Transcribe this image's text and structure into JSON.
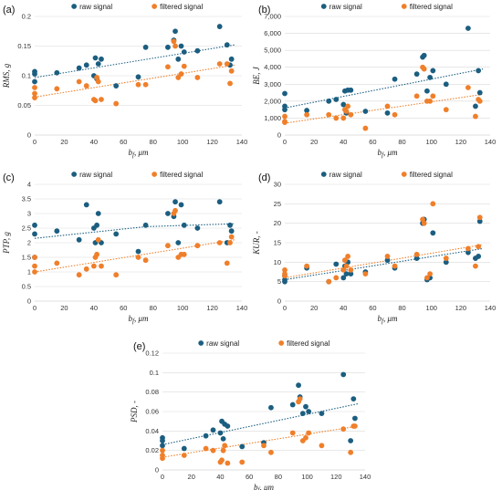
{
  "colors": {
    "raw": "#1b5e80",
    "filtered": "#f07f2a",
    "grid": "#d9d9d9",
    "axis": "#bfbfbf"
  },
  "chart_data": [
    {
      "type": "scatter",
      "label": "(a)",
      "xlabel": "b_f, μm",
      "ylabel": "RMS, g",
      "xlim": [
        0,
        140
      ],
      "ylim": [
        0,
        0.2
      ],
      "xticks": [
        "0",
        "20",
        "40",
        "60",
        "80",
        "100",
        "120",
        "140"
      ],
      "yticks": [
        "0",
        "0.05",
        "0.1",
        "0.15",
        "0.2"
      ],
      "ytick_values": [
        0,
        0.05,
        0.1,
        0.15,
        0.2
      ],
      "legend": [
        "raw signal",
        "filtered signal"
      ],
      "series": [
        {
          "name": "raw signal",
          "x": [
            0,
            0,
            0,
            15,
            30,
            35,
            40,
            41,
            42,
            43,
            45,
            55,
            70,
            75,
            90,
            94,
            95,
            97,
            99,
            101,
            110,
            125,
            130,
            132,
            133
          ],
          "y": [
            0.103,
            0.107,
            0.09,
            0.105,
            0.113,
            0.118,
            0.1,
            0.13,
            0.095,
            0.12,
            0.128,
            0.083,
            0.098,
            0.148,
            0.148,
            0.16,
            0.175,
            0.128,
            0.15,
            0.14,
            0.142,
            0.183,
            0.152,
            0.118,
            0.128
          ],
          "trend": [
            [
              0,
              0.097
            ],
            [
              135,
              0.152
            ]
          ]
        },
        {
          "name": "filtered signal",
          "x": [
            0,
            0,
            0,
            15,
            30,
            35,
            40,
            41,
            42,
            43,
            45,
            55,
            70,
            75,
            90,
            94,
            95,
            97,
            99,
            101,
            110,
            125,
            130,
            132,
            133
          ],
          "y": [
            0.07,
            0.063,
            0.08,
            0.078,
            0.09,
            0.083,
            0.06,
            0.058,
            0.097,
            0.09,
            0.06,
            0.053,
            0.085,
            0.085,
            0.115,
            0.158,
            0.15,
            0.097,
            0.103,
            0.116,
            0.097,
            0.12,
            0.12,
            0.087,
            0.108
          ],
          "trend": [
            [
              0,
              0.064
            ],
            [
              135,
              0.118
            ]
          ]
        }
      ]
    },
    {
      "type": "scatter",
      "label": "(b)",
      "xlabel": "b_f, μm",
      "ylabel": "BE, J",
      "xlim": [
        0,
        140
      ],
      "ylim": [
        0,
        7000
      ],
      "xticks": [
        "0",
        "20",
        "40",
        "60",
        "80",
        "100",
        "120",
        "140"
      ],
      "yticks": [
        "0",
        "1,000",
        "2,000",
        "3,000",
        "4,000",
        "5,000",
        "6,000",
        "7,000"
      ],
      "ytick_values": [
        0,
        1000,
        2000,
        3000,
        4000,
        5000,
        6000,
        7000
      ],
      "legend": [
        "raw signal",
        "filtered signal"
      ],
      "series": [
        {
          "name": "raw signal",
          "x": [
            0,
            0,
            0,
            15,
            30,
            35,
            40,
            41,
            42,
            43,
            45,
            55,
            70,
            75,
            90,
            94,
            95,
            97,
            99,
            101,
            110,
            125,
            130,
            132,
            133
          ],
          "y": [
            2450,
            1700,
            1500,
            1450,
            2000,
            2100,
            1800,
            2600,
            1300,
            2650,
            2650,
            1400,
            1300,
            3300,
            3600,
            4600,
            4700,
            2600,
            3400,
            3800,
            3000,
            6300,
            1700,
            3800,
            2500
          ],
          "trend": [
            [
              0,
              1600
            ],
            [
              135,
              3900
            ]
          ]
        },
        {
          "name": "filtered signal",
          "x": [
            0,
            0,
            0,
            15,
            30,
            35,
            40,
            41,
            42,
            43,
            45,
            55,
            70,
            75,
            90,
            94,
            95,
            97,
            99,
            101,
            110,
            125,
            130,
            132,
            133
          ],
          "y": [
            750,
            800,
            1100,
            1200,
            1200,
            1000,
            1000,
            1500,
            1400,
            1700,
            1200,
            400,
            1700,
            1200,
            2300,
            4000,
            3900,
            2000,
            2000,
            2300,
            1500,
            2800,
            1100,
            2100,
            2000
          ],
          "trend": [
            [
              0,
              700
            ],
            [
              135,
              2400
            ]
          ]
        }
      ]
    },
    {
      "type": "scatter",
      "label": "(c)",
      "xlabel": "b_f, μm",
      "ylabel": "PTP, g",
      "xlim": [
        0,
        140
      ],
      "ylim": [
        0,
        4
      ],
      "xticks": [
        "0",
        "20",
        "40",
        "60",
        "80",
        "100",
        "120",
        "140"
      ],
      "yticks": [
        "0",
        "0.5",
        "1",
        "1.5",
        "2",
        "2.5",
        "3",
        "3.5",
        "4"
      ],
      "ytick_values": [
        0,
        0.5,
        1,
        1.5,
        2,
        2.5,
        3,
        3.5,
        4
      ],
      "legend": [
        "raw signal",
        "filtered signal"
      ],
      "series": [
        {
          "name": "raw signal",
          "x": [
            0,
            0,
            0,
            15,
            30,
            35,
            40,
            41,
            42,
            43,
            45,
            55,
            70,
            75,
            90,
            94,
            95,
            97,
            99,
            101,
            110,
            125,
            130,
            132,
            133
          ],
          "y": [
            2.6,
            2.3,
            1.5,
            2.4,
            2.1,
            3.3,
            2.5,
            2.0,
            2.6,
            3.0,
            2.0,
            2.3,
            1.7,
            2.6,
            3.0,
            2.9,
            3.4,
            2.0,
            3.3,
            2.6,
            2.5,
            3.4,
            2.0,
            2.6,
            2.4
          ],
          "trend": [
            [
              0,
              2.15
            ],
            [
              75,
              2.55
            ],
            [
              135,
              2.65
            ]
          ]
        },
        {
          "name": "filtered signal",
          "x": [
            0,
            0,
            0,
            15,
            30,
            35,
            40,
            41,
            42,
            43,
            45,
            55,
            70,
            75,
            90,
            94,
            95,
            97,
            99,
            101,
            110,
            125,
            130,
            132,
            133
          ],
          "y": [
            1.0,
            1.2,
            1.5,
            1.3,
            0.9,
            1.1,
            1.2,
            1.5,
            1.6,
            2.1,
            1.2,
            0.9,
            1.5,
            1.4,
            1.9,
            3.0,
            3.1,
            1.5,
            1.6,
            1.6,
            1.9,
            2.0,
            1.3,
            2.0,
            2.2
          ],
          "trend": [
            [
              0,
              1.0
            ],
            [
              135,
              2.1
            ]
          ]
        }
      ]
    },
    {
      "type": "scatter",
      "label": "(d)",
      "xlabel": "b_f, μm",
      "ylabel": "KUR, -",
      "xlim": [
        0,
        140
      ],
      "ylim": [
        0,
        30
      ],
      "xticks": [
        "0",
        "20",
        "40",
        "60",
        "80",
        "100",
        "120",
        "140"
      ],
      "yticks": [
        "0",
        "5",
        "10",
        "15",
        "20",
        "25",
        "30"
      ],
      "ytick_values": [
        0,
        5,
        10,
        15,
        20,
        25,
        30
      ],
      "legend": [
        "raw signal",
        "filtered signal"
      ],
      "series": [
        {
          "name": "raw signal",
          "x": [
            0,
            0,
            0,
            15,
            30,
            35,
            40,
            41,
            42,
            43,
            45,
            55,
            70,
            75,
            90,
            94,
            95,
            97,
            99,
            101,
            110,
            125,
            130,
            132,
            133
          ],
          "y": [
            5.0,
            5.5,
            6.5,
            8.5,
            5.0,
            9.5,
            6.0,
            9.0,
            7.0,
            10.0,
            7.0,
            7.5,
            10.5,
            8.5,
            11.0,
            20.0,
            21.0,
            5.5,
            6.0,
            17.5,
            10.0,
            12.5,
            11.0,
            11.5,
            20.5
          ],
          "trend": [
            [
              0,
              5.5
            ],
            [
              135,
              13.5
            ]
          ]
        },
        {
          "name": "filtered signal",
          "x": [
            0,
            0,
            0,
            15,
            30,
            35,
            40,
            41,
            42,
            43,
            45,
            55,
            70,
            75,
            90,
            94,
            95,
            97,
            99,
            101,
            110,
            125,
            130,
            132,
            133
          ],
          "y": [
            6.5,
            7.0,
            8.0,
            9.0,
            5.0,
            6.0,
            8.0,
            10.5,
            9.0,
            11.5,
            8.0,
            7.0,
            11.5,
            9.0,
            12.0,
            21.0,
            20.0,
            6.0,
            7.0,
            25.0,
            11.0,
            13.5,
            9.0,
            14.0,
            21.5
          ],
          "trend": [
            [
              0,
              6.0
            ],
            [
              135,
              14.5
            ]
          ]
        }
      ]
    },
    {
      "type": "scatter",
      "label": "(e)",
      "xlabel": "b_f, μm",
      "ylabel": "PSD, -",
      "xlim": [
        0,
        140
      ],
      "ylim": [
        0,
        0.12
      ],
      "xticks": [
        "0",
        "20",
        "40",
        "60",
        "80",
        "100",
        "120",
        "140"
      ],
      "yticks": [
        "0",
        "0.02",
        "0.04",
        "0.06",
        "0.08",
        "0.1",
        "0.12"
      ],
      "ytick_values": [
        0,
        0.02,
        0.04,
        0.06,
        0.08,
        0.1,
        0.12
      ],
      "legend": [
        "raw signal",
        "filtered signal"
      ],
      "series": [
        {
          "name": "raw signal",
          "x": [
            0,
            0,
            0,
            15,
            30,
            35,
            40,
            41,
            42,
            43,
            45,
            55,
            70,
            75,
            90,
            94,
            95,
            97,
            99,
            101,
            110,
            125,
            130,
            132,
            133
          ],
          "y": [
            0.033,
            0.03,
            0.025,
            0.022,
            0.035,
            0.041,
            0.038,
            0.05,
            0.032,
            0.047,
            0.045,
            0.024,
            0.028,
            0.064,
            0.067,
            0.087,
            0.075,
            0.058,
            0.065,
            0.06,
            0.058,
            0.098,
            0.03,
            0.073,
            0.053
          ],
          "trend": [
            [
              0,
              0.026
            ],
            [
              135,
              0.068
            ]
          ]
        },
        {
          "name": "filtered signal",
          "x": [
            0,
            0,
            0,
            15,
            30,
            35,
            40,
            41,
            42,
            43,
            45,
            55,
            70,
            75,
            90,
            94,
            95,
            97,
            99,
            101,
            110,
            125,
            130,
            132,
            133
          ],
          "y": [
            0.012,
            0.015,
            0.02,
            0.015,
            0.022,
            0.02,
            0.008,
            0.01,
            0.02,
            0.025,
            0.007,
            0.008,
            0.025,
            0.018,
            0.038,
            0.07,
            0.073,
            0.03,
            0.033,
            0.038,
            0.025,
            0.042,
            0.018,
            0.045,
            0.045
          ],
          "trend": [
            [
              0,
              0.013
            ],
            [
              135,
              0.045
            ]
          ]
        }
      ]
    }
  ]
}
